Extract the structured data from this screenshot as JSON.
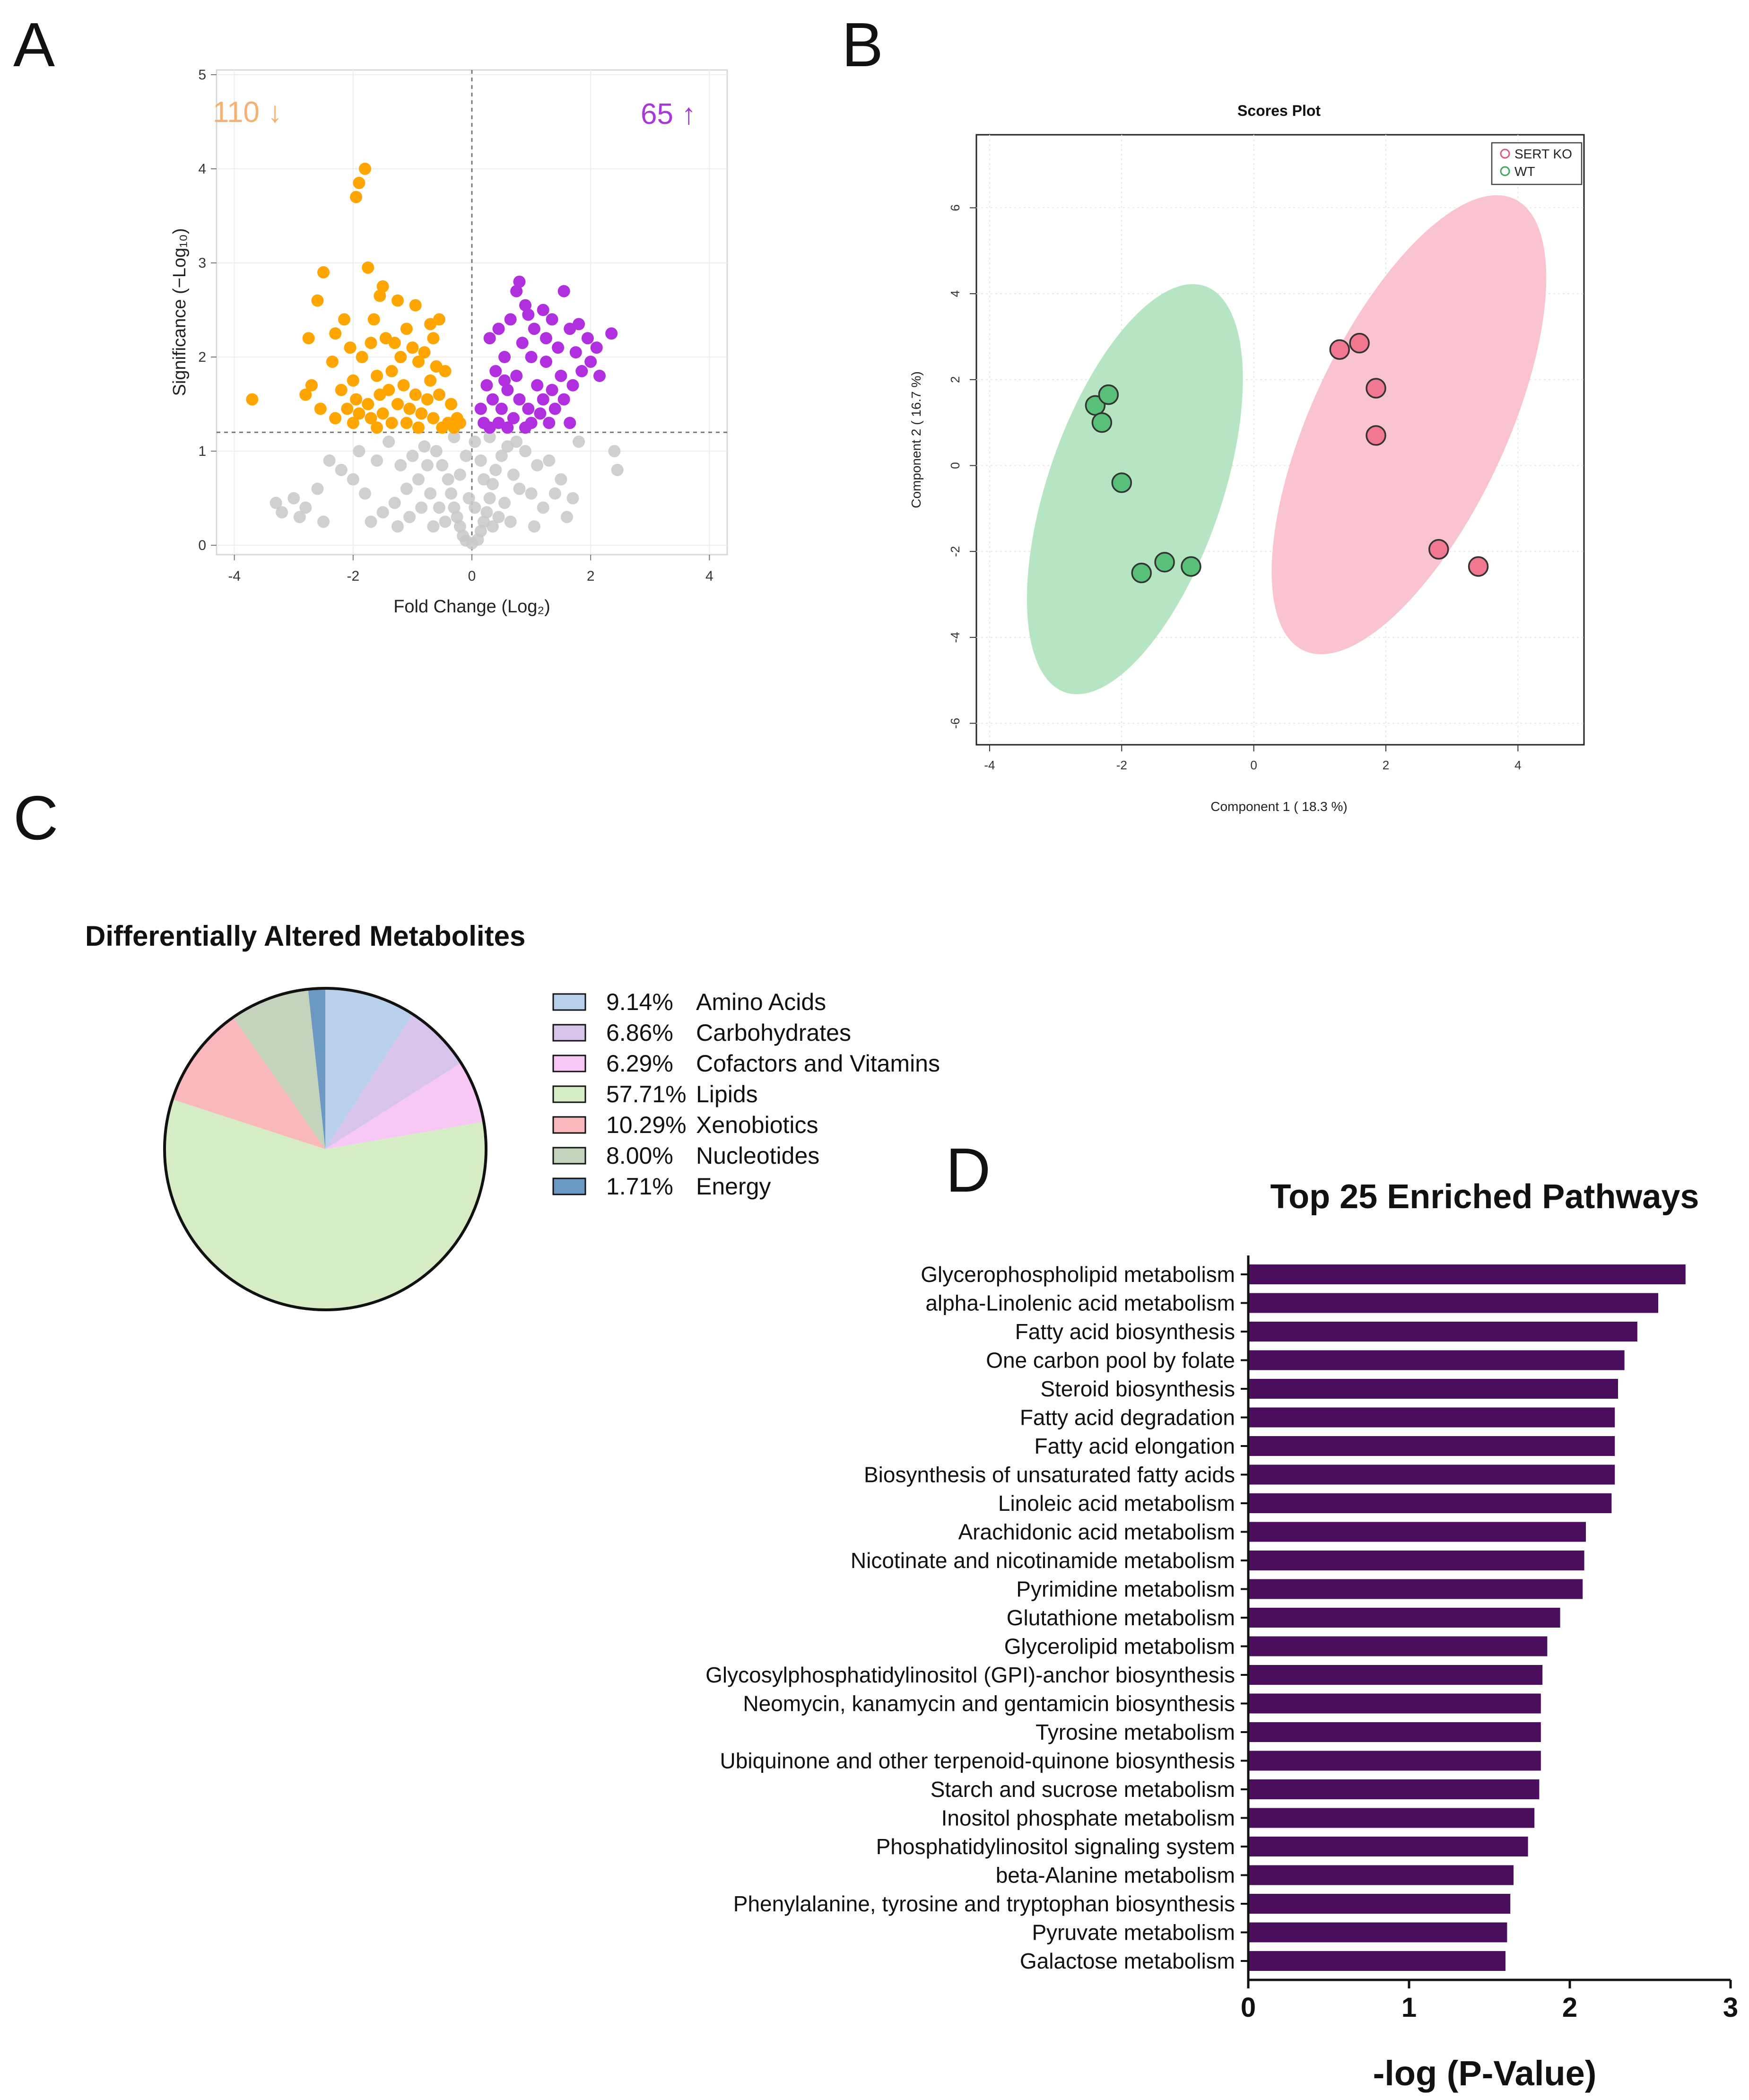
{
  "panel_labels": {
    "a": "A",
    "b": "B",
    "c": "C",
    "d": "D"
  },
  "colors": {
    "down": "#FFA500",
    "up": "#B030E0",
    "ns": "#C8C8C8",
    "sert": "#F8B8C8",
    "wt": "#A8E0B8",
    "bar": "#4A0E5C"
  },
  "chart_data": [
    {
      "id": "volcano",
      "type": "scatter",
      "title": "",
      "xlabel": "Fold Change (Log₂)",
      "ylabel": "Significance (−Log₁₀)",
      "xlim": [
        -4.3,
        4.3
      ],
      "ylim": [
        -0.1,
        5.05
      ],
      "xticks": [
        -4,
        -2,
        0,
        2,
        4
      ],
      "yticks": [
        0,
        1,
        2,
        3,
        4,
        5
      ],
      "threshold_y": 1.2,
      "threshold_x": 0,
      "annotations": {
        "down": "110 ↓",
        "up": "65 ↑"
      },
      "counts": {
        "down": 110,
        "up": 65
      },
      "series": [
        {
          "name": "down",
          "points": [
            [
              -3.7,
              1.55
            ],
            [
              -1.8,
              4.0
            ],
            [
              -1.9,
              3.85
            ],
            [
              -1.95,
              3.7
            ],
            [
              -2.5,
              2.9
            ],
            [
              -1.75,
              2.95
            ],
            [
              -2.6,
              2.6
            ],
            [
              -2.75,
              2.2
            ],
            [
              -2.15,
              2.4
            ],
            [
              -2.35,
              1.95
            ],
            [
              -2.7,
              1.7
            ],
            [
              -2.8,
              1.6
            ],
            [
              -2.55,
              1.45
            ],
            [
              -1.5,
              2.75
            ],
            [
              -1.25,
              2.6
            ],
            [
              -0.95,
              2.55
            ],
            [
              -0.7,
              2.35
            ],
            [
              -0.55,
              2.4
            ],
            [
              -1.1,
              2.3
            ],
            [
              -1.45,
              2.2
            ],
            [
              -1.65,
              2.4
            ],
            [
              -2.05,
              2.1
            ],
            [
              -1.85,
              2.0
            ],
            [
              -1.2,
              2.0
            ],
            [
              -0.9,
              1.95
            ],
            [
              -0.6,
              1.9
            ],
            [
              -0.45,
              1.85
            ],
            [
              -1.35,
              1.85
            ],
            [
              -1.6,
              1.8
            ],
            [
              -2.0,
              1.75
            ],
            [
              -2.2,
              1.65
            ],
            [
              -1.95,
              1.55
            ],
            [
              -1.75,
              1.5
            ],
            [
              -1.55,
              1.6
            ],
            [
              -1.4,
              1.65
            ],
            [
              -1.15,
              1.7
            ],
            [
              -0.95,
              1.6
            ],
            [
              -0.75,
              1.55
            ],
            [
              -0.55,
              1.6
            ],
            [
              -0.35,
              1.5
            ],
            [
              -0.25,
              1.35
            ],
            [
              -0.4,
              1.3
            ],
            [
              -0.65,
              1.35
            ],
            [
              -0.85,
              1.4
            ],
            [
              -1.05,
              1.45
            ],
            [
              -1.25,
              1.5
            ],
            [
              -1.5,
              1.4
            ],
            [
              -1.7,
              1.35
            ],
            [
              -1.9,
              1.4
            ],
            [
              -2.1,
              1.45
            ],
            [
              -2.3,
              1.35
            ],
            [
              -1.35,
              1.3
            ],
            [
              -1.1,
              1.3
            ],
            [
              -0.9,
              1.25
            ],
            [
              -0.5,
              1.25
            ],
            [
              -1.6,
              1.25
            ],
            [
              -2.0,
              1.3
            ],
            [
              -0.3,
              1.25
            ],
            [
              -0.2,
              1.3
            ],
            [
              -0.7,
              1.75
            ],
            [
              -1.3,
              2.15
            ],
            [
              -1.0,
              2.1
            ],
            [
              -0.8,
              2.05
            ],
            [
              -1.7,
              2.15
            ],
            [
              -2.3,
              2.25
            ],
            [
              -1.55,
              2.65
            ],
            [
              -0.65,
              2.2
            ]
          ]
        },
        {
          "name": "up",
          "points": [
            [
              0.8,
              2.8
            ],
            [
              0.75,
              2.7
            ],
            [
              1.55,
              2.7
            ],
            [
              0.9,
              2.55
            ],
            [
              1.2,
              2.5
            ],
            [
              0.65,
              2.4
            ],
            [
              1.35,
              2.4
            ],
            [
              0.45,
              2.3
            ],
            [
              1.05,
              2.3
            ],
            [
              1.8,
              2.35
            ],
            [
              2.35,
              2.25
            ],
            [
              1.65,
              2.3
            ],
            [
              1.95,
              2.2
            ],
            [
              0.3,
              2.2
            ],
            [
              0.85,
              2.15
            ],
            [
              1.45,
              2.1
            ],
            [
              2.1,
              2.1
            ],
            [
              1.75,
              2.05
            ],
            [
              0.55,
              2.0
            ],
            [
              1.0,
              2.0
            ],
            [
              1.25,
              1.95
            ],
            [
              2.0,
              1.95
            ],
            [
              0.4,
              1.85
            ],
            [
              0.75,
              1.8
            ],
            [
              1.5,
              1.8
            ],
            [
              1.85,
              1.85
            ],
            [
              2.15,
              1.8
            ],
            [
              0.25,
              1.7
            ],
            [
              0.6,
              1.65
            ],
            [
              1.1,
              1.7
            ],
            [
              1.35,
              1.65
            ],
            [
              1.7,
              1.7
            ],
            [
              0.35,
              1.55
            ],
            [
              0.8,
              1.55
            ],
            [
              1.2,
              1.55
            ],
            [
              1.55,
              1.55
            ],
            [
              0.15,
              1.45
            ],
            [
              0.5,
              1.45
            ],
            [
              0.95,
              1.45
            ],
            [
              1.4,
              1.45
            ],
            [
              0.2,
              1.3
            ],
            [
              0.45,
              1.3
            ],
            [
              0.7,
              1.35
            ],
            [
              1.0,
              1.3
            ],
            [
              1.3,
              1.3
            ],
            [
              1.65,
              1.3
            ],
            [
              0.6,
              1.25
            ],
            [
              0.9,
              1.25
            ],
            [
              0.3,
              1.25
            ],
            [
              1.15,
              1.4
            ],
            [
              0.55,
              1.75
            ],
            [
              0.95,
              2.45
            ],
            [
              1.25,
              2.2
            ]
          ]
        },
        {
          "name": "ns",
          "points": [
            [
              -3.3,
              0.45
            ],
            [
              -3.2,
              0.35
            ],
            [
              -3.0,
              0.5
            ],
            [
              -2.9,
              0.3
            ],
            [
              -2.8,
              0.4
            ],
            [
              -2.6,
              0.6
            ],
            [
              -2.5,
              0.25
            ],
            [
              -2.4,
              0.9
            ],
            [
              -2.2,
              0.8
            ],
            [
              -2.0,
              0.7
            ],
            [
              -1.8,
              0.55
            ],
            [
              -1.9,
              1.0
            ],
            [
              -1.6,
              0.9
            ],
            [
              -1.4,
              1.1
            ],
            [
              -1.2,
              0.85
            ],
            [
              -1.0,
              0.95
            ],
            [
              -0.8,
              1.05
            ],
            [
              -0.6,
              1.0
            ],
            [
              -0.5,
              0.85
            ],
            [
              -0.4,
              0.7
            ],
            [
              -0.35,
              0.55
            ],
            [
              -0.3,
              0.4
            ],
            [
              -0.25,
              0.3
            ],
            [
              -0.2,
              0.2
            ],
            [
              -0.15,
              0.1
            ],
            [
              -0.1,
              0.05
            ],
            [
              0.0,
              0.02
            ],
            [
              0.1,
              0.06
            ],
            [
              0.15,
              0.15
            ],
            [
              0.2,
              0.25
            ],
            [
              0.25,
              0.35
            ],
            [
              0.3,
              0.5
            ],
            [
              0.35,
              0.65
            ],
            [
              0.4,
              0.8
            ],
            [
              0.5,
              0.95
            ],
            [
              0.6,
              1.05
            ],
            [
              0.75,
              1.1
            ],
            [
              0.9,
              1.0
            ],
            [
              1.1,
              0.85
            ],
            [
              1.3,
              0.9
            ],
            [
              1.5,
              0.7
            ],
            [
              1.7,
              0.5
            ],
            [
              1.2,
              0.4
            ],
            [
              1.0,
              0.55
            ],
            [
              0.8,
              0.6
            ],
            [
              0.55,
              0.45
            ],
            [
              0.45,
              0.3
            ],
            [
              0.35,
              0.2
            ],
            [
              -0.45,
              0.25
            ],
            [
              -0.55,
              0.4
            ],
            [
              -0.7,
              0.55
            ],
            [
              -0.9,
              0.7
            ],
            [
              -1.1,
              0.6
            ],
            [
              -1.3,
              0.45
            ],
            [
              -1.5,
              0.35
            ],
            [
              -0.65,
              0.2
            ],
            [
              0.65,
              0.25
            ],
            [
              1.8,
              1.1
            ],
            [
              2.4,
              1.0
            ],
            [
              2.45,
              0.8
            ],
            [
              1.6,
              0.3
            ],
            [
              -1.7,
              0.25
            ],
            [
              -0.85,
              0.4
            ],
            [
              -1.05,
              0.3
            ],
            [
              0.05,
              0.4
            ],
            [
              -0.05,
              0.5
            ],
            [
              0.2,
              0.7
            ],
            [
              -0.2,
              0.75
            ],
            [
              0.15,
              0.9
            ],
            [
              -0.1,
              0.95
            ],
            [
              0.05,
              1.1
            ],
            [
              -0.3,
              1.15
            ],
            [
              0.3,
              1.15
            ],
            [
              -0.75,
              0.85
            ],
            [
              0.7,
              0.75
            ],
            [
              1.4,
              0.55
            ],
            [
              -1.25,
              0.2
            ],
            [
              1.05,
              0.2
            ]
          ]
        }
      ]
    },
    {
      "id": "scores",
      "type": "scatter",
      "title": "Scores Plot",
      "xlabel": "Component 1 ( 18.3 %)",
      "ylabel": "Component 2 ( 16.7 %)",
      "xlim": [
        -4.2,
        5.0
      ],
      "ylim": [
        -6.5,
        7.7
      ],
      "xticks": [
        -4,
        -2,
        0,
        2,
        4
      ],
      "yticks": [
        -6,
        -4,
        -2,
        0,
        2,
        4,
        6
      ],
      "legend": {
        "position": "top-right",
        "entries": [
          "SERT KO",
          "WT"
        ]
      },
      "series": [
        {
          "name": "SERT KO",
          "points": [
            [
              1.3,
              2.7
            ],
            [
              1.6,
              2.85
            ],
            [
              1.85,
              1.8
            ],
            [
              1.85,
              0.7
            ],
            [
              2.8,
              -1.95
            ],
            [
              3.4,
              -2.35
            ]
          ],
          "ellipse": {
            "cx": 2.35,
            "cy": 0.95,
            "angle": -65,
            "major": 5.8,
            "minor": 0.95
          }
        },
        {
          "name": "WT",
          "points": [
            [
              -2.4,
              1.4
            ],
            [
              -2.2,
              1.65
            ],
            [
              -2.3,
              1.0
            ],
            [
              -2.0,
              -0.4
            ],
            [
              -1.7,
              -2.5
            ],
            [
              -1.35,
              -2.25
            ],
            [
              -0.95,
              -2.35
            ]
          ],
          "ellipse": {
            "cx": -1.8,
            "cy": -0.55,
            "angle": -71,
            "major": 5.0,
            "minor": 0.85
          }
        }
      ]
    },
    {
      "id": "pie",
      "type": "pie",
      "title": "Differentially Altered Metabolites",
      "slices": [
        {
          "label": "Amino Acids",
          "value": 9.14,
          "pct": "9.14%",
          "color": "#B8D0EC"
        },
        {
          "label": "Carbohydrates",
          "value": 6.86,
          "pct": "6.86%",
          "color": "#D8C4EA"
        },
        {
          "label": "Cofactors and Vitamins",
          "value": 6.29,
          "pct": "6.29%",
          "color": "#F8C8F4"
        },
        {
          "label": "Lipids",
          "value": 57.71,
          "pct": "57.71%",
          "color": "#D6ECC4"
        },
        {
          "label": "Xenobiotics",
          "value": 10.29,
          "pct": "10.29%",
          "color": "#F8B8BC"
        },
        {
          "label": "Nucleotides",
          "value": 8.0,
          "pct": "8.00%",
          "color": "#C4D4BC"
        },
        {
          "label": "Energy",
          "value": 1.71,
          "pct": "1.71%",
          "color": "#6C98C4"
        }
      ]
    },
    {
      "id": "pathways",
      "type": "bar",
      "orientation": "horizontal",
      "title": "Top 25 Enriched Pathways",
      "xlabel": "-log (P-Value)",
      "xlim": [
        0,
        3
      ],
      "xticks": [
        0,
        1,
        2,
        3
      ],
      "categories": [
        "Glycerophospholipid metabolism",
        "alpha-Linolenic acid metabolism",
        "Fatty acid biosynthesis",
        "One carbon pool by folate",
        "Steroid biosynthesis",
        "Fatty acid degradation",
        "Fatty acid elongation",
        "Biosynthesis of unsaturated fatty acids",
        "Linoleic acid metabolism",
        "Arachidonic acid metabolism",
        "Nicotinate and nicotinamide metabolism",
        "Pyrimidine metabolism",
        "Glutathione metabolism",
        "Glycerolipid metabolism",
        "Glycosylphosphatidylinositol (GPI)-anchor biosynthesis",
        "Neomycin, kanamycin and gentamicin biosynthesis",
        "Tyrosine metabolism",
        "Ubiquinone and other terpenoid-quinone biosynthesis",
        "Starch and sucrose metabolism",
        "Inositol phosphate metabolism",
        "Phosphatidylinositol signaling system",
        "beta-Alanine metabolism",
        "Phenylalanine, tyrosine and tryptophan biosynthesis",
        "Pyruvate metabolism",
        "Galactose metabolism"
      ],
      "values": [
        2.72,
        2.55,
        2.42,
        2.34,
        2.3,
        2.28,
        2.28,
        2.28,
        2.26,
        2.1,
        2.09,
        2.08,
        1.94,
        1.86,
        1.83,
        1.82,
        1.82,
        1.82,
        1.81,
        1.78,
        1.74,
        1.65,
        1.63,
        1.61,
        1.6
      ]
    }
  ]
}
